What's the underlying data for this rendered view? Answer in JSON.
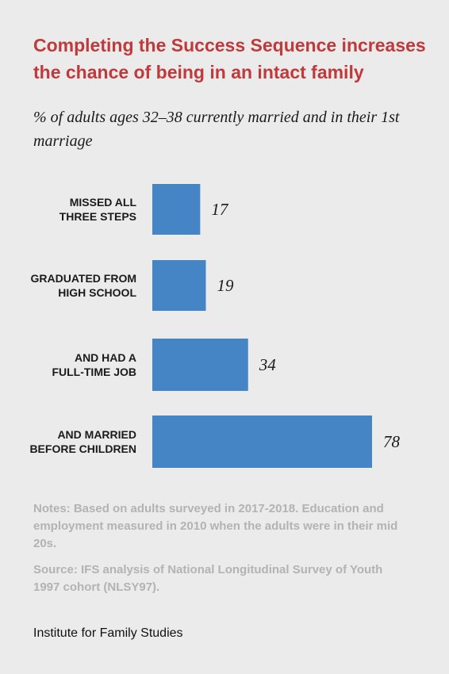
{
  "chart_data": {
    "type": "bar",
    "orientation": "horizontal",
    "title": "Completing the Success Sequence increases the chance of being in an intact family",
    "subtitle": "% of adults ages 32–38 currently married and in their 1st marriage",
    "categories": [
      [
        "MISSED ALL",
        "THREE STEPS"
      ],
      [
        "GRADUATED FROM",
        "HIGH SCHOOL"
      ],
      [
        "AND HAD A",
        "FULL-TIME JOB"
      ],
      [
        "AND MARRIED",
        "BEFORE CHILDREN"
      ]
    ],
    "values": [
      17,
      19,
      34,
      78
    ],
    "xlim": [
      0,
      78
    ],
    "grid": false,
    "bar_color": "#4585c6"
  },
  "notes": "Notes: Based on adults surveyed in 2017-2018. Education and employment measured in 2010 when the adults were in their mid 20s.",
  "source": "Source: IFS analysis of National Longitudinal Survey of Youth 1997 cohort (NLSY97).",
  "brand": "Institute for Family Studies",
  "colors": {
    "title": "#c0393b",
    "bar": "#4585c6",
    "notes": "#b3b3b3",
    "background": "#ebebeb"
  }
}
